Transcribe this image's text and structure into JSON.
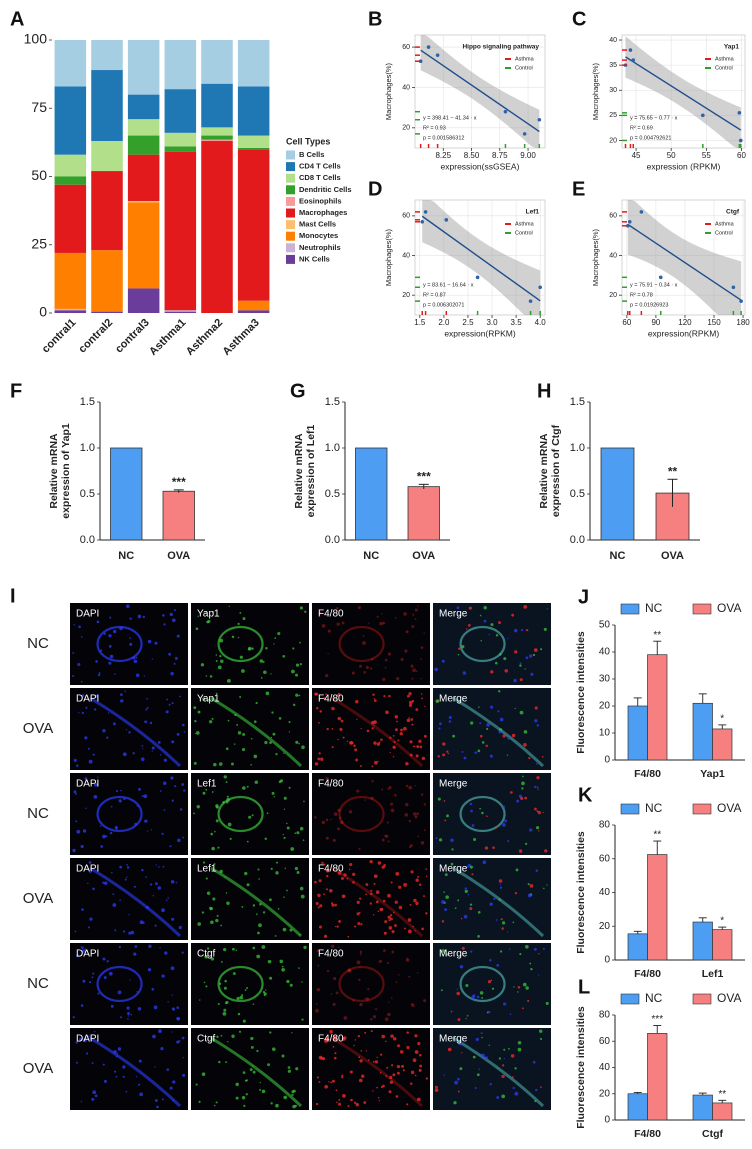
{
  "chart_data": [
    {
      "type": "stacked_bar",
      "panel": "A",
      "legend_title": "Cell Types",
      "categories": [
        "contral1",
        "contral2",
        "contral3",
        "Asthma1",
        "Asthma2",
        "Asthma3"
      ],
      "ylim": [
        0,
        100
      ],
      "yticks": [
        0,
        25,
        50,
        75,
        100
      ],
      "series": [
        {
          "name": "B Cells",
          "color": "#a6cee3",
          "values": [
            17,
            11,
            20,
            18,
            16,
            17
          ]
        },
        {
          "name": "CD4 T Cells",
          "color": "#1f78b4",
          "values": [
            25,
            26,
            9,
            16,
            16,
            18
          ]
        },
        {
          "name": "CD8 T Cells",
          "color": "#b2df8a",
          "values": [
            8,
            11,
            6,
            5,
            3,
            4.5
          ]
        },
        {
          "name": "Dendritic Cells",
          "color": "#33a02c",
          "values": [
            3,
            0,
            7,
            2,
            1.5,
            0.5
          ]
        },
        {
          "name": "Eosinophils",
          "color": "#fb9a99",
          "values": [
            0,
            0,
            0,
            0,
            0.5,
            0
          ]
        },
        {
          "name": "Macrophages",
          "color": "#e31a1c",
          "values": [
            25,
            29,
            17,
            58,
            63,
            55.5
          ]
        },
        {
          "name": "Mast Cells",
          "color": "#fdbf6f",
          "values": [
            0,
            0,
            0.5,
            0,
            0,
            0
          ]
        },
        {
          "name": "Monocytes",
          "color": "#ff7f00",
          "values": [
            20.5,
            22.5,
            31.5,
            0,
            0,
            3.5
          ]
        },
        {
          "name": "Neutrophils",
          "color": "#cab2d6",
          "values": [
            0.5,
            0,
            0,
            0.5,
            0,
            0
          ]
        },
        {
          "name": "NK Cells",
          "color": "#6a3d9a",
          "values": [
            1,
            0.5,
            9,
            0.5,
            0,
            1
          ]
        }
      ]
    },
    {
      "type": "scatter",
      "panel": "B",
      "title": "Hippo signaling pathway",
      "xlabel": "expression(ssGSEA)",
      "ylabel": "Macrophages(%)",
      "xlim": [
        8.0,
        9.15
      ],
      "xticks": [
        8.25,
        {
          "value": 8.5,
          "label": "8.50"
        },
        8.75,
        {
          "value": 9,
          "label": "9.00"
        }
      ],
      "ylim": [
        10,
        66
      ],
      "yticks": [
        20,
        40,
        60
      ],
      "grid": true,
      "point_color": "#2f63a8",
      "fit_color": "#1f4e8c",
      "equation": [
        "y = 398.41 − 41.34 · x",
        "R² = 0.93",
        "p = 0.001586312"
      ],
      "series": [
        {
          "name": "Asthma",
          "color": "#e41a1c",
          "x": [
            8.05,
            8.12,
            8.2
          ],
          "values": [
            53,
            60,
            56
          ]
        },
        {
          "name": "Control",
          "color": "#2ca02c",
          "x": [
            8.8,
            8.97,
            9.1
          ],
          "values": [
            28,
            17,
            24
          ]
        }
      ]
    },
    {
      "type": "scatter",
      "panel": "C",
      "title": "Yap1",
      "xlabel": "expression  (RPKM)",
      "ylabel": "Macrophages(%)",
      "xlim": [
        43,
        60.5
      ],
      "xticks": [
        45,
        50,
        55,
        60
      ],
      "ylim": [
        18.5,
        41
      ],
      "yticks": [
        20,
        25,
        30,
        35,
        40
      ],
      "grid": true,
      "point_color": "#2f63a8",
      "fit_color": "#1f4e8c",
      "equation": [
        "y = 75.65 − 0.77 · x",
        "R² = 0.69",
        "p = 0.004792621"
      ],
      "series": [
        {
          "name": "Asthma",
          "color": "#e41a1c",
          "x": [
            43.5,
            44.2,
            44.6
          ],
          "values": [
            35,
            38,
            36
          ]
        },
        {
          "name": "Control",
          "color": "#2ca02c",
          "x": [
            54.5,
            59.7,
            59.9
          ],
          "values": [
            25,
            25.5,
            20
          ]
        }
      ]
    },
    {
      "type": "scatter",
      "panel": "D",
      "title": "Lef1",
      "xlabel": "expression(RPKM)",
      "ylabel": "Macrophages(%)",
      "xlim": [
        1.4,
        4.1
      ],
      "xticks": [
        1.5,
        {
          "value": 2,
          "label": "2.0"
        },
        2.5,
        {
          "value": 3,
          "label": "3.0"
        },
        3.5,
        {
          "value": 4,
          "label": "4.0"
        }
      ],
      "ylim": [
        10,
        68
      ],
      "yticks": [
        20,
        40,
        60
      ],
      "grid": true,
      "point_color": "#2f63a8",
      "fit_color": "#1f4e8c",
      "equation": [
        "y = 83.61 − 16.64 · x",
        "R² = 0.87",
        "p = 0.006302071"
      ],
      "series": [
        {
          "name": "Asthma",
          "color": "#e41a1c",
          "x": [
            1.55,
            1.62,
            2.05
          ],
          "values": [
            57,
            62,
            58
          ]
        },
        {
          "name": "Control",
          "color": "#2ca02c",
          "x": [
            2.7,
            3.8,
            4.0
          ],
          "values": [
            29,
            17,
            24
          ]
        }
      ]
    },
    {
      "type": "scatter",
      "panel": "E",
      "title": "Ctgf",
      "xlabel": "expression(RPKM)",
      "ylabel": "Macrophages(%)",
      "xlim": [
        55,
        182
      ],
      "xticks": [
        60,
        90,
        120,
        150,
        180
      ],
      "ylim": [
        10,
        68
      ],
      "yticks": [
        20,
        40,
        60
      ],
      "grid": true,
      "point_color": "#2f63a8",
      "fit_color": "#1f4e8c",
      "equation": [
        "y = 75.91 − 0.34 · x",
        "R² = 0.78",
        "p = 0.01926923"
      ],
      "series": [
        {
          "name": "Asthma",
          "color": "#e41a1c",
          "x": [
            61,
            63,
            75
          ],
          "values": [
            55,
            57,
            62
          ]
        },
        {
          "name": "Control",
          "color": "#2ca02c",
          "x": [
            95,
            170,
            178
          ],
          "values": [
            29,
            24,
            17
          ]
        }
      ]
    },
    {
      "type": "bar",
      "panel": "F",
      "ylabel": [
        "Relative mRNA",
        "expression of Yap1"
      ],
      "categories": [
        "NC",
        "OVA"
      ],
      "values": [
        1,
        0.53
      ],
      "errors": [
        null,
        0.015
      ],
      "annotations": [
        null,
        "***"
      ],
      "colors": [
        "#4d9ef2",
        "#f67f7f"
      ],
      "ylim": [
        0,
        1.5
      ],
      "yticks": [
        {
          "value": 0,
          "label": "0.0"
        },
        0.5,
        {
          "value": 1,
          "label": "1.0"
        },
        {
          "value": 1.5,
          "label": "1.5"
        }
      ]
    },
    {
      "type": "bar",
      "panel": "G",
      "ylabel": [
        "Relative mRNA",
        "expression of Lef1"
      ],
      "categories": [
        "NC",
        "OVA"
      ],
      "values": [
        1,
        0.58
      ],
      "errors": [
        null,
        0.025
      ],
      "annotations": [
        null,
        "***"
      ],
      "colors": [
        "#4d9ef2",
        "#f67f7f"
      ],
      "ylim": [
        0,
        1.5
      ],
      "yticks": [
        {
          "value": 0,
          "label": "0.0"
        },
        0.5,
        {
          "value": 1,
          "label": "1.0"
        },
        {
          "value": 1.5,
          "label": "1.5"
        }
      ]
    },
    {
      "type": "bar",
      "panel": "H",
      "ylabel": [
        "Relative mRNA",
        "expression of Ctgf"
      ],
      "categories": [
        "NC",
        "OVA"
      ],
      "values": [
        1,
        0.51
      ],
      "errors": [
        null,
        0.15
      ],
      "annotations": [
        null,
        "**"
      ],
      "colors": [
        "#4d9ef2",
        "#f67f7f"
      ],
      "ylim": [
        0,
        1.5
      ],
      "yticks": [
        {
          "value": 0,
          "label": "0.0"
        },
        0.5,
        {
          "value": 1,
          "label": "1.0"
        },
        {
          "value": 1.5,
          "label": "1.5"
        }
      ]
    },
    {
      "type": "grouped_bar",
      "panel": "J",
      "ylabel": "Fluorescence intensities",
      "categories": [
        "F4/80",
        "Yap1"
      ],
      "ylim": [
        0,
        50
      ],
      "yticks": [
        0,
        10,
        20,
        30,
        40,
        50
      ],
      "series": [
        {
          "name": "NC",
          "color": "#4d9ef2",
          "values": [
            20,
            21
          ],
          "errors": [
            3,
            3.5
          ],
          "annotations": [
            null,
            null
          ]
        },
        {
          "name": "OVA",
          "color": "#f67f7f",
          "values": [
            39,
            11.5
          ],
          "errors": [
            5,
            1.5
          ],
          "annotations": [
            "**",
            "*"
          ]
        }
      ]
    },
    {
      "type": "grouped_bar",
      "panel": "K",
      "ylabel": "Fluorescence intensities",
      "categories": [
        "F4/80",
        "Lef1"
      ],
      "ylim": [
        0,
        80
      ],
      "yticks": [
        0,
        20,
        40,
        60,
        80
      ],
      "series": [
        {
          "name": "NC",
          "color": "#4d9ef2",
          "values": [
            15.5,
            22.5
          ],
          "errors": [
            1.5,
            2.5
          ],
          "annotations": [
            null,
            null
          ]
        },
        {
          "name": "OVA",
          "color": "#f67f7f",
          "values": [
            62.5,
            18
          ],
          "errors": [
            8,
            1.5
          ],
          "annotations": [
            "**",
            "*"
          ]
        }
      ]
    },
    {
      "type": "grouped_bar",
      "panel": "L",
      "ylabel": "Fluorescence intensities",
      "categories": [
        "F4/80",
        "Ctgf"
      ],
      "ylim": [
        0,
        80
      ],
      "yticks": [
        0,
        20,
        40,
        60,
        80
      ],
      "series": [
        {
          "name": "NC",
          "color": "#4d9ef2",
          "values": [
            20,
            19
          ],
          "errors": [
            1,
            1.5
          ],
          "annotations": [
            null,
            null
          ]
        },
        {
          "name": "OVA",
          "color": "#f67f7f",
          "values": [
            66,
            13
          ],
          "errors": [
            6,
            2
          ],
          "annotations": [
            "***",
            "**"
          ]
        }
      ]
    }
  ],
  "image_panel": {
    "panel": "I",
    "rows": [
      {
        "label": "NC",
        "tiles": [
          "DAPI",
          "Yap1",
          "F4/80",
          "Merge"
        ]
      },
      {
        "label": "OVA",
        "tiles": [
          "DAPI",
          "Yap1",
          "F4/80",
          "Merge"
        ]
      },
      {
        "label": "NC",
        "tiles": [
          "DAPI",
          "Lef1",
          "F4/80",
          "Merge"
        ]
      },
      {
        "label": "OVA",
        "tiles": [
          "DAPI",
          "Lef1",
          "F4/80",
          "Merge"
        ]
      },
      {
        "label": "NC",
        "tiles": [
          "DAPI",
          "Ctgf",
          "F4/80",
          "Merge"
        ]
      },
      {
        "label": "OVA",
        "tiles": [
          "DAPI",
          "Ctgf",
          "F4/80",
          "Merge"
        ]
      }
    ]
  }
}
